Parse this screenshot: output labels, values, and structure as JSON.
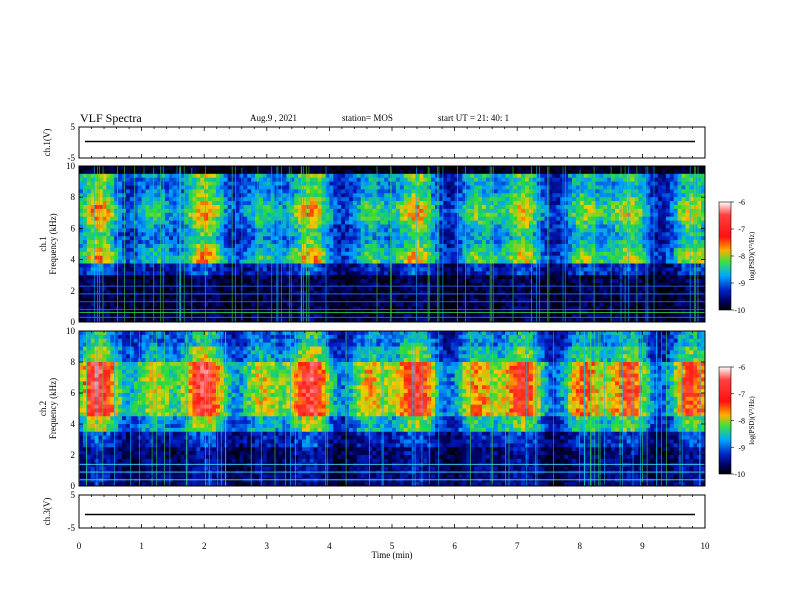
{
  "header": {
    "title": "VLF Spectra",
    "date": "Aug.9 , 2021",
    "station": "station= MOS",
    "start": "start UT = 21: 40: 1"
  },
  "colors": {
    "scale": [
      "#ffffff",
      "#ff2020",
      "#ffd000",
      "#30e040",
      "#00b0ff",
      "#0010a0",
      "#000000"
    ]
  },
  "chart_data": [
    {
      "type": "line",
      "name": "ch1-waveform",
      "ylabel": "ch.1(V)",
      "ylim": [
        -5,
        5
      ],
      "yticks": [
        "5",
        "-5"
      ],
      "xlim": [
        0,
        10
      ],
      "values_note": "flat trace near 0 V"
    },
    {
      "type": "heatmap",
      "name": "ch1-spectrogram",
      "ylabel_line1": "ch.1",
      "ylabel_line2": "Frequency (kHz)",
      "ylim": [
        0,
        10
      ],
      "yticks": [
        "0",
        "2",
        "4",
        "6",
        "8",
        "10"
      ],
      "xlim": [
        0,
        10
      ],
      "colorbar": {
        "label": "log(PSD)(V²/Hz)",
        "range": [
          -10,
          -6
        ],
        "ticks": [
          "-6",
          "-7",
          "-8",
          "-9",
          "-10"
        ]
      }
    },
    {
      "type": "heatmap",
      "name": "ch2-spectrogram",
      "ylabel_line1": "ch.2",
      "ylabel_line2": "Frequency (kHz)",
      "ylim": [
        0,
        10
      ],
      "yticks": [
        "0",
        "2",
        "4",
        "6",
        "8",
        "10"
      ],
      "xlim": [
        0,
        10
      ],
      "colorbar": {
        "label": "log(PSD)(V²/Hz)",
        "range": [
          -10,
          -6
        ],
        "ticks": [
          "-6",
          "-7",
          "-8",
          "-9",
          "-10"
        ]
      }
    },
    {
      "type": "line",
      "name": "ch3-waveform",
      "ylabel": "ch.3(V)",
      "ylim": [
        -5,
        5
      ],
      "yticks": [
        "5",
        "-5"
      ],
      "xlim": [
        0,
        10
      ],
      "xlabel": "Time (min)",
      "xticks": [
        "0",
        "1",
        "2",
        "3",
        "4",
        "5",
        "6",
        "7",
        "8",
        "9",
        "10"
      ]
    }
  ]
}
